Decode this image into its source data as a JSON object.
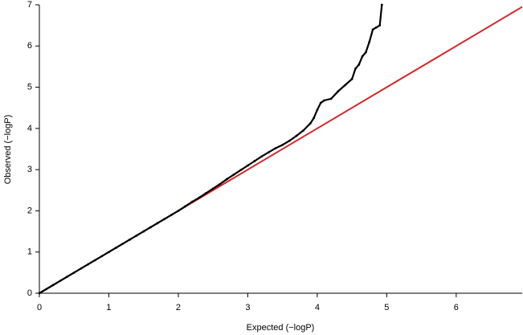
{
  "chart_data": {
    "type": "scatter",
    "x_label": "Expected (−logP)",
    "y_label": "Observed (−logP)",
    "xlim": [
      0,
      6.95
    ],
    "ylim": [
      0,
      7
    ],
    "xticks": [
      0,
      1,
      2,
      3,
      4,
      5,
      6
    ],
    "yticks": [
      0,
      1,
      2,
      3,
      4,
      5,
      6,
      7
    ],
    "series": [
      {
        "color": "#000000",
        "x": [
          0,
          0.1,
          0.2,
          0.3,
          0.4,
          0.5,
          0.6,
          0.7,
          0.8,
          0.9,
          1.0,
          1.1,
          1.2,
          1.3,
          1.4,
          1.5,
          1.6,
          1.7,
          1.8,
          1.9,
          2.0,
          2.1,
          2.2,
          2.3,
          2.4,
          2.5,
          2.6,
          2.7,
          2.8,
          2.9,
          3.0,
          3.1,
          3.2,
          3.3,
          3.4,
          3.5,
          3.6,
          3.7,
          3.8,
          3.9,
          3.95,
          4.0,
          4.05,
          4.1,
          4.2,
          4.3,
          4.4,
          4.5,
          4.55,
          4.6,
          4.65,
          4.7,
          4.75,
          4.8,
          4.85,
          4.9,
          4.93
        ],
        "y": [
          0,
          0.1,
          0.2,
          0.3,
          0.4,
          0.5,
          0.6,
          0.7,
          0.8,
          0.9,
          1.0,
          1.1,
          1.2,
          1.3,
          1.4,
          1.5,
          1.6,
          1.7,
          1.8,
          1.9,
          2.0,
          2.11,
          2.22,
          2.32,
          2.43,
          2.54,
          2.65,
          2.77,
          2.88,
          2.99,
          3.1,
          3.21,
          3.32,
          3.42,
          3.52,
          3.6,
          3.7,
          3.82,
          3.95,
          4.12,
          4.25,
          4.45,
          4.62,
          4.68,
          4.72,
          4.9,
          5.05,
          5.2,
          5.45,
          5.55,
          5.75,
          5.85,
          6.1,
          6.4,
          6.45,
          6.5,
          7.0
        ]
      }
    ],
    "reference": {
      "color": "#d62728",
      "x": [
        0,
        6.95
      ],
      "y": [
        0,
        6.95
      ]
    }
  }
}
